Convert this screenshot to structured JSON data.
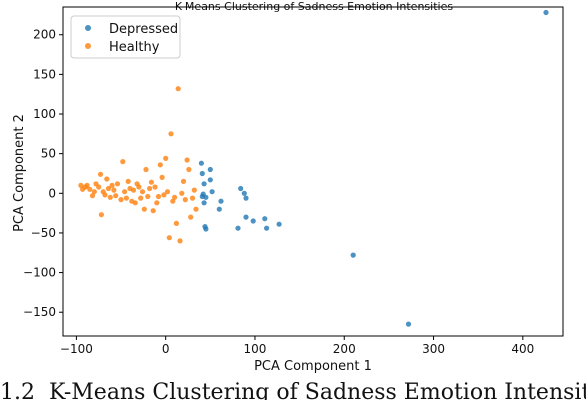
{
  "caption": {
    "prefix": "1.2",
    "text": "K-Means Clustering of Sadness Emotion Intensities"
  },
  "chart_data": {
    "type": "scatter",
    "title": "K-Means Clustering of Sadness Emotion Intensities",
    "xlabel": "PCA Component 1",
    "ylabel": "PCA Component 2",
    "xlim": [
      -115,
      445
    ],
    "ylim": [
      -180,
      235
    ],
    "xticks": [
      -100,
      0,
      100,
      200,
      300,
      400
    ],
    "yticks": [
      -150,
      -100,
      -50,
      0,
      50,
      100,
      150,
      200
    ],
    "grid": false,
    "legend": "top-left",
    "series": [
      {
        "name": "Depressed",
        "color": "#1f77b4",
        "points": [
          [
            40,
            38
          ],
          [
            41,
            25
          ],
          [
            42,
            -1
          ],
          [
            41,
            -4
          ],
          [
            43,
            -12
          ],
          [
            45,
            -5
          ],
          [
            43,
            12
          ],
          [
            44,
            -42
          ],
          [
            45,
            -45
          ],
          [
            50,
            30
          ],
          [
            50,
            17
          ],
          [
            52,
            2
          ],
          [
            60,
            -20
          ],
          [
            62,
            -10
          ],
          [
            81,
            -44
          ],
          [
            84,
            6
          ],
          [
            88,
            0
          ],
          [
            90,
            -6
          ],
          [
            90,
            -30
          ],
          [
            98,
            -35
          ],
          [
            111,
            -32
          ],
          [
            113,
            -44
          ],
          [
            127,
            -39
          ],
          [
            210,
            -78
          ],
          [
            272,
            -165
          ],
          [
            426,
            228
          ]
        ]
      },
      {
        "name": "Healthy",
        "color": "#ff7f0e",
        "points": [
          [
            -95,
            10
          ],
          [
            -93,
            5
          ],
          [
            -90,
            8
          ],
          [
            -88,
            10
          ],
          [
            -85,
            5
          ],
          [
            -82,
            -3
          ],
          [
            -80,
            2
          ],
          [
            -78,
            12
          ],
          [
            -75,
            8
          ],
          [
            -73,
            24
          ],
          [
            -72,
            -27
          ],
          [
            -70,
            2
          ],
          [
            -68,
            -2
          ],
          [
            -66,
            18
          ],
          [
            -64,
            6
          ],
          [
            -62,
            -5
          ],
          [
            -60,
            10
          ],
          [
            -58,
            4
          ],
          [
            -56,
            -3
          ],
          [
            -54,
            12
          ],
          [
            -50,
            -8
          ],
          [
            -48,
            40
          ],
          [
            -46,
            2
          ],
          [
            -44,
            -6
          ],
          [
            -42,
            15
          ],
          [
            -40,
            6
          ],
          [
            -38,
            -10
          ],
          [
            -36,
            4
          ],
          [
            -34,
            -12
          ],
          [
            -32,
            12
          ],
          [
            -30,
            8
          ],
          [
            -28,
            -6
          ],
          [
            -26,
            2
          ],
          [
            -24,
            -20
          ],
          [
            -22,
            30
          ],
          [
            -20,
            -4
          ],
          [
            -18,
            6
          ],
          [
            -16,
            14
          ],
          [
            -14,
            -22
          ],
          [
            -12,
            8
          ],
          [
            -10,
            -12
          ],
          [
            -8,
            -4
          ],
          [
            -6,
            36
          ],
          [
            -4,
            20
          ],
          [
            -2,
            -2
          ],
          [
            0,
            44
          ],
          [
            2,
            2
          ],
          [
            4,
            -56
          ],
          [
            6,
            75
          ],
          [
            8,
            -10
          ],
          [
            10,
            -5
          ],
          [
            12,
            -38
          ],
          [
            14,
            132
          ],
          [
            16,
            -60
          ],
          [
            18,
            0
          ],
          [
            20,
            15
          ],
          [
            22,
            -8
          ],
          [
            24,
            42
          ],
          [
            26,
            30
          ],
          [
            28,
            -30
          ],
          [
            30,
            -6
          ],
          [
            32,
            4
          ],
          [
            34,
            -20
          ]
        ]
      }
    ]
  }
}
